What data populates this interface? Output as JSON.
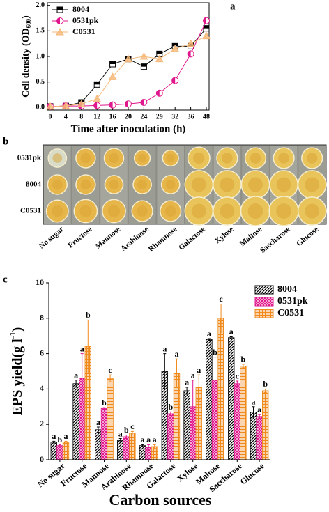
{
  "chart_data": [
    {
      "type": "line",
      "label": "a",
      "ylabel": "Cell density (OD",
      "ylabel_sub": "600",
      "ylabel_end": ")",
      "xlabel": "Time after inoculation (h)",
      "categories": [
        "0",
        "4",
        "8",
        "12",
        "16",
        "20",
        "24",
        "29",
        "32",
        "36",
        "48"
      ],
      "ylim": [
        -0.05,
        2.05
      ],
      "yticks": [
        {
          "value": 0,
          "label": "0.0"
        },
        {
          "value": 0.5,
          "label": "0.5"
        },
        {
          "value": 1,
          "label": "1.0"
        },
        {
          "value": 1.5,
          "label": "1.5"
        },
        {
          "value": 2,
          "label": "2.0"
        }
      ],
      "legend": "upper left",
      "series": [
        {
          "name": "8004",
          "color": "#000000",
          "values": [
            0.02,
            0.03,
            0.1,
            0.45,
            0.85,
            0.95,
            0.8,
            1.05,
            1.2,
            1.2,
            1.55
          ]
        },
        {
          "name": "0531pk",
          "color": "#e0168c",
          "values": [
            0.02,
            0.03,
            0.03,
            0.04,
            0.05,
            0.07,
            0.1,
            0.28,
            0.53,
            1.05,
            1.7
          ]
        },
        {
          "name": "C0531",
          "color": "#f5b878",
          "values": [
            0.02,
            0.03,
            0.07,
            0.17,
            0.6,
            0.95,
            1.0,
            0.95,
            1.15,
            1.25,
            1.4
          ]
        }
      ]
    },
    {
      "type": "bar",
      "label": "c",
      "ylabel": "EPS yield(g l",
      "ylabel_sup": "-1",
      "ylabel_end": ")",
      "xlabel": "Carbon sources",
      "categories": [
        "No sugar",
        "Fructose",
        "Mannose",
        "Arabinose",
        "Rhamnose",
        "Galactose",
        "Xylose",
        "Maltose",
        "Saccharose",
        "Glucose"
      ],
      "ylim": [
        0,
        10
      ],
      "yticks": [
        0,
        2,
        4,
        6,
        8,
        10
      ],
      "legend": "upper right",
      "series": [
        {
          "name": "8004",
          "color": "#000000",
          "values": [
            1.0,
            4.3,
            1.7,
            1.1,
            0.8,
            5.0,
            3.9,
            6.8,
            6.9,
            2.7
          ],
          "errors": [
            0.05,
            0.2,
            0.15,
            0.1,
            0.05,
            1.0,
            0.2,
            0.05,
            0.05,
            0.3
          ],
          "letters": [
            "a",
            "a",
            "a",
            "a",
            "a",
            "a",
            "a",
            "a",
            "a",
            "a"
          ]
        },
        {
          "name": "0531pk",
          "color": "#e0168c",
          "values": [
            0.8,
            4.6,
            2.9,
            1.3,
            0.7,
            2.6,
            3.0,
            4.5,
            4.3,
            2.45
          ],
          "errors": [
            0.05,
            1.4,
            0.05,
            0.1,
            0.15,
            0.1,
            1.5,
            1.3,
            0.15,
            0.1
          ],
          "letters": [
            "b",
            "a",
            "b",
            "b",
            "a",
            "b",
            "a",
            "b",
            "c",
            "a"
          ]
        },
        {
          "name": "C0531",
          "color": "#f08a1c",
          "values": [
            1.0,
            6.4,
            4.6,
            1.5,
            0.75,
            4.9,
            4.1,
            8.0,
            5.3,
            3.9
          ],
          "errors": [
            0.05,
            1.5,
            0.2,
            0.1,
            0.1,
            0.8,
            0.7,
            0.8,
            0.1,
            0.1
          ],
          "letters": [
            "a",
            "b",
            "c",
            "c",
            "a",
            "a",
            "a",
            "c",
            "b",
            "b"
          ]
        }
      ]
    }
  ],
  "plate": {
    "label": "b",
    "rows": [
      "0531pk",
      "8004",
      "C0531"
    ],
    "columns": [
      "No sugar",
      "Fructose",
      "Mannose",
      "Arabinose",
      "Rhamnose",
      "Galactose",
      "Xylose",
      "Maltose",
      "Saccharose",
      "Glucose"
    ]
  }
}
